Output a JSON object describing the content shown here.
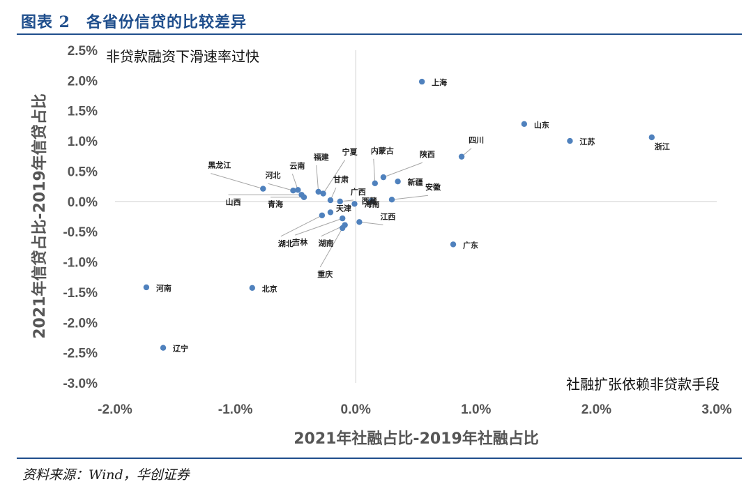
{
  "header": {
    "title": "图表 2　各省份信贷的比较差异"
  },
  "footer": {
    "source": "资料来源：Wind，华创证券"
  },
  "chart_data": {
    "type": "scatter",
    "xlabel": "2021年社融占比-2019年社融占比",
    "ylabel": "2021年信贷占比-2019年信贷占比",
    "xlim": [
      -0.02,
      0.03
    ],
    "ylim": [
      -0.03,
      0.025
    ],
    "x_ticks": [
      -0.02,
      -0.01,
      0.0,
      0.01,
      0.02,
      0.03
    ],
    "x_tick_labels": [
      "-2.0%",
      "-1.0%",
      "0.0%",
      "1.0%",
      "2.0%",
      "3.0%"
    ],
    "y_ticks": [
      0.025,
      0.02,
      0.015,
      0.01,
      0.005,
      0.0,
      -0.005,
      -0.01,
      -0.015,
      -0.02,
      -0.025,
      -0.03
    ],
    "y_tick_labels": [
      "2.5%",
      "2.0%",
      "1.5%",
      "1.0%",
      "0.5%",
      "0.0%",
      "-0.5%",
      "-1.0%",
      "-1.5%",
      "-2.0%",
      "-2.5%",
      "-3.0%"
    ],
    "grid": false,
    "annotations": [
      "非贷款融资下滑速率过快",
      "社融扩张依赖非贷款手段"
    ],
    "series_color": "#4f81bd",
    "points": [
      {
        "label": "上海",
        "x": 0.0055,
        "y": 0.0198
      },
      {
        "label": "山东",
        "x": 0.014,
        "y": 0.0128
      },
      {
        "label": "江苏",
        "x": 0.0178,
        "y": 0.01
      },
      {
        "label": "浙江",
        "x": 0.0246,
        "y": 0.0106
      },
      {
        "label": "四川",
        "x": 0.0088,
        "y": 0.0074
      },
      {
        "label": "陕西",
        "x": 0.0023,
        "y": 0.004
      },
      {
        "label": "内蒙古",
        "x": 0.0016,
        "y": 0.003
      },
      {
        "label": "新疆",
        "x": 0.0035,
        "y": 0.0033
      },
      {
        "label": "安徽",
        "x": 0.003,
        "y": 0.0003
      },
      {
        "label": "西藏",
        "x": 0.0013,
        "y": 0.0001
      },
      {
        "label": "海南",
        "x": -0.0001,
        "y": -0.0004
      },
      {
        "label": "广西",
        "x": -0.0013,
        "y": 0.0
      },
      {
        "label": "宁夏",
        "x": -0.0027,
        "y": 0.0013
      },
      {
        "label": "福建",
        "x": -0.0031,
        "y": 0.0016
      },
      {
        "label": "甘肃",
        "x": -0.0021,
        "y": 0.0002
      },
      {
        "label": "云南",
        "x": -0.0048,
        "y": 0.0019
      },
      {
        "label": "河北",
        "x": -0.0052,
        "y": 0.0018
      },
      {
        "label": "青海",
        "x": -0.0043,
        "y": 0.0007
      },
      {
        "label": "山西",
        "x": -0.0045,
        "y": 0.0011
      },
      {
        "label": "黑龙江",
        "x": -0.0077,
        "y": 0.0021
      },
      {
        "label": "天津",
        "x": -0.0021,
        "y": -0.0018
      },
      {
        "label": "湖北",
        "x": -0.0028,
        "y": -0.0023
      },
      {
        "label": "吉林",
        "x": -0.0011,
        "y": -0.0028
      },
      {
        "label": "湖南",
        "x": -0.0009,
        "y": -0.0039
      },
      {
        "label": "重庆",
        "x": -0.0011,
        "y": -0.0044
      },
      {
        "label": "江西",
        "x": 0.0003,
        "y": -0.0034
      },
      {
        "label": "广东",
        "x": 0.0081,
        "y": -0.0071
      },
      {
        "label": "北京",
        "x": -0.0086,
        "y": -0.0143
      },
      {
        "label": "河南",
        "x": -0.0174,
        "y": -0.0142
      },
      {
        "label": "辽宁",
        "x": -0.016,
        "y": -0.0242
      }
    ]
  }
}
